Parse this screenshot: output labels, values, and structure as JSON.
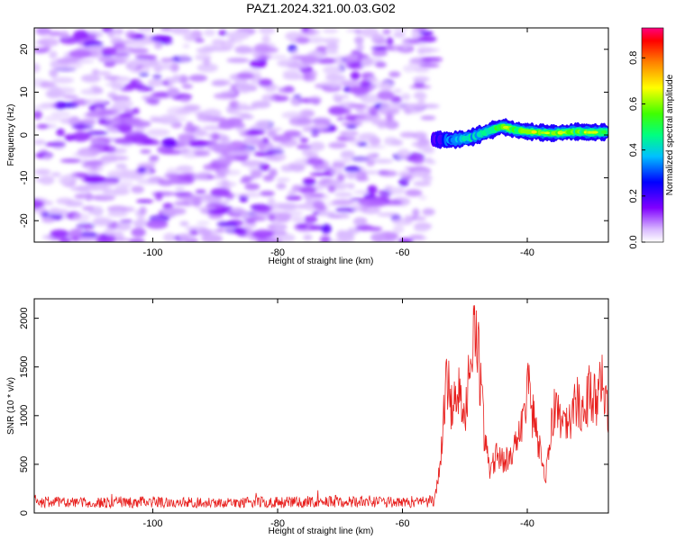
{
  "figure_title": "PAZ1.2024.321.00.03.G02",
  "colors": {
    "snr_line": "#e8201e",
    "axis": "#000000"
  },
  "chart_data": [
    {
      "type": "heatmap",
      "xlabel": "Height of straight line (km)",
      "ylabel": "Frequency (Hz)",
      "xlim": [
        -119,
        -27
      ],
      "ylim": [
        -25,
        25
      ],
      "x_ticks": [
        -100,
        -80,
        -60,
        -40
      ],
      "y_ticks": [
        -20,
        -10,
        0,
        10,
        20
      ],
      "noise_region_x": [
        -119,
        -55
      ],
      "signal_track": {
        "x": [
          -55,
          -52,
          -49,
          -46,
          -44,
          -42,
          -40,
          -38,
          -36,
          -34,
          -32,
          -30,
          -27
        ],
        "frequency": [
          -1,
          -1.2,
          -0.6,
          1.0,
          2.0,
          1.2,
          0.8,
          0.6,
          0.4,
          0.6,
          0.8,
          0.6,
          0.7
        ],
        "peak_amplitude": [
          0.2,
          0.35,
          0.4,
          0.45,
          0.55,
          0.6,
          0.62,
          0.58,
          0.65,
          0.6,
          0.55,
          0.6,
          0.5
        ]
      },
      "colorbar": {
        "label": "Normalized spectral amplitude",
        "range": [
          0,
          0.93
        ],
        "ticks": [
          0.0,
          0.2,
          0.4,
          0.6,
          0.8
        ]
      }
    },
    {
      "type": "line",
      "xlabel": "Height of straight line (km)",
      "ylabel": "SNR (10 * v/v)",
      "xlim": [
        -119,
        -27
      ],
      "ylim": [
        0,
        2200
      ],
      "x_ticks": [
        -100,
        -80,
        -60,
        -40
      ],
      "y_ticks": [
        0,
        500,
        1000,
        1500,
        2000
      ],
      "series": [
        {
          "color": "#e8201e",
          "x": [
            -119,
            -110,
            -100,
            -90,
            -80,
            -70,
            -60,
            -55,
            -54,
            -53,
            -52,
            -51,
            -50,
            -49,
            -48,
            -47,
            -46,
            -45,
            -44,
            -43,
            -42,
            -41,
            -40,
            -39,
            -38,
            -37,
            -36,
            -35,
            -34,
            -33,
            -32,
            -31,
            -30,
            -29,
            -28,
            -27
          ],
          "values": [
            120,
            110,
            120,
            110,
            115,
            130,
            120,
            130,
            450,
            1500,
            1100,
            1250,
            900,
            1700,
            1850,
            900,
            450,
            600,
            550,
            600,
            700,
            950,
            1350,
            1000,
            700,
            400,
            1000,
            1150,
            900,
            1000,
            1150,
            1000,
            1300,
            1200,
            1350,
            1100
          ]
        }
      ]
    }
  ]
}
